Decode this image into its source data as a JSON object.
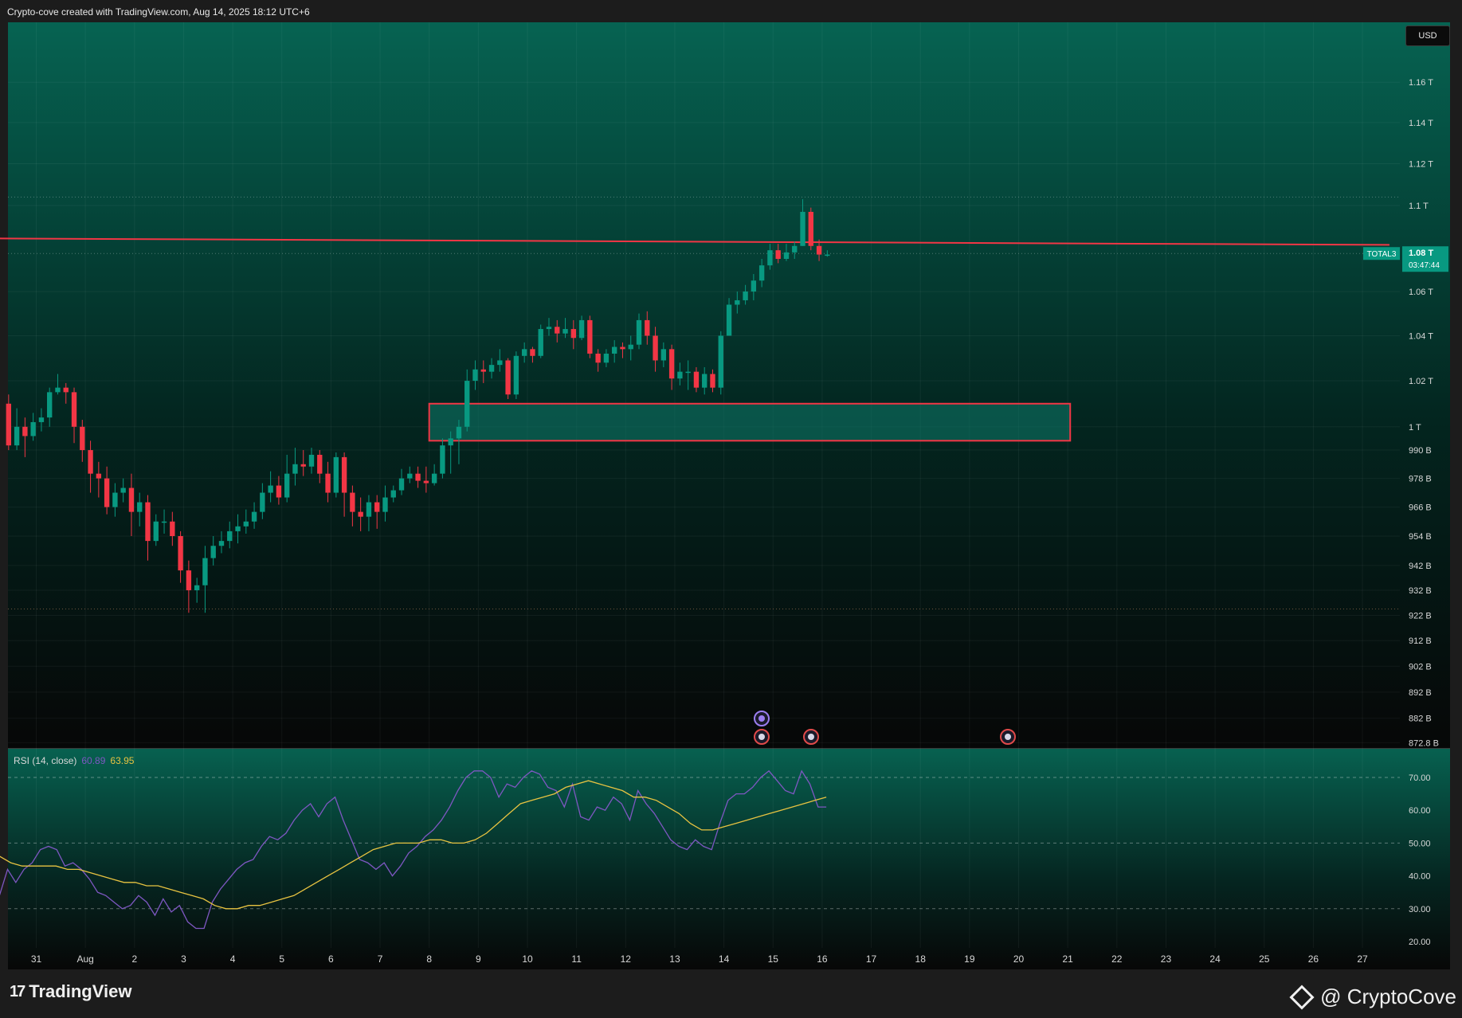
{
  "header": {
    "caption": "Crypto-cove created with TradingView.com, Aug 14, 2025 18:12 UTC+6"
  },
  "currency_button": "USD",
  "symbol_label": "TOTAL3",
  "price_label": {
    "value": "1.08 T",
    "countdown": "03:47:44"
  },
  "rsi_legend": {
    "title": "RSI (14, close)",
    "rsi": "60.89",
    "ma": "63.95"
  },
  "footer": {
    "brand": "TradingView",
    "brand_mark": "17",
    "watermark": "@ CryptoCove"
  },
  "colors": {
    "up": "#089981",
    "down": "#f23645",
    "resistance": "#f23645",
    "zone_fill": "#0e7c6b",
    "zone_border": "#f23645",
    "rsi_line": "#7e57c2",
    "rsi_ma": "#e8c341",
    "bg_top": "#066352",
    "bg_bottom": "#070707"
  },
  "chart_data": [
    {
      "type": "candlestick",
      "symbol": "TOTAL3",
      "interval": "4h",
      "y_scale": "log",
      "ylim": [
        872.8,
        1180
      ],
      "y_unit": "B",
      "y_ticks": [
        {
          "v": 1160,
          "label": "1.16 T"
        },
        {
          "v": 1140,
          "label": "1.14 T"
        },
        {
          "v": 1120,
          "label": "1.12 T"
        },
        {
          "v": 1100,
          "label": "1.1 T"
        },
        {
          "v": 1060,
          "label": "1.06 T"
        },
        {
          "v": 1040,
          "label": "1.04 T"
        },
        {
          "v": 1020,
          "label": "1.02 T"
        },
        {
          "v": 1000,
          "label": "1 T"
        },
        {
          "v": 990,
          "label": "990 B"
        },
        {
          "v": 978,
          "label": "978 B"
        },
        {
          "v": 966,
          "label": "966 B"
        },
        {
          "v": 954,
          "label": "954 B"
        },
        {
          "v": 942,
          "label": "942 B"
        },
        {
          "v": 932,
          "label": "932 B"
        },
        {
          "v": 922,
          "label": "922 B"
        },
        {
          "v": 912,
          "label": "912 B"
        },
        {
          "v": 902,
          "label": "902 B"
        },
        {
          "v": 892,
          "label": "892 B"
        },
        {
          "v": 882,
          "label": "882 B"
        },
        {
          "v": 872.8,
          "label": "872.8 B"
        }
      ],
      "x_ticks": [
        {
          "t": 30.75,
          "label": "31"
        },
        {
          "t": 31.75,
          "label": "Aug"
        },
        {
          "t": 32.75,
          "label": "2"
        },
        {
          "t": 33.75,
          "label": "3"
        },
        {
          "t": 34.75,
          "label": "4"
        },
        {
          "t": 35.75,
          "label": "5"
        },
        {
          "t": 36.75,
          "label": "6"
        },
        {
          "t": 37.75,
          "label": "7"
        },
        {
          "t": 38.75,
          "label": "8"
        },
        {
          "t": 39.75,
          "label": "9"
        },
        {
          "t": 40.75,
          "label": "10"
        },
        {
          "t": 41.75,
          "label": "11"
        },
        {
          "t": 42.75,
          "label": "12"
        },
        {
          "t": 43.75,
          "label": "13"
        },
        {
          "t": 44.75,
          "label": "14"
        },
        {
          "t": 45.75,
          "label": "15"
        },
        {
          "t": 46.75,
          "label": "16"
        },
        {
          "t": 47.75,
          "label": "17"
        },
        {
          "t": 48.75,
          "label": "18"
        },
        {
          "t": 49.75,
          "label": "19"
        },
        {
          "t": 50.75,
          "label": "20"
        },
        {
          "t": 51.75,
          "label": "21"
        },
        {
          "t": 52.75,
          "label": "22"
        },
        {
          "t": 53.75,
          "label": "23"
        },
        {
          "t": 54.75,
          "label": "24"
        },
        {
          "t": 55.75,
          "label": "25"
        },
        {
          "t": 56.75,
          "label": "26"
        },
        {
          "t": 57.75,
          "label": "27"
        }
      ],
      "candles": [
        [
          1010,
          992,
          1014,
          990
        ],
        [
          992,
          1000,
          1008,
          990
        ],
        [
          1000,
          996,
          1004,
          987
        ],
        [
          996,
          1002,
          1006,
          994
        ],
        [
          1002,
          1004,
          1008,
          998
        ],
        [
          1004,
          1015,
          1017,
          1000
        ],
        [
          1015,
          1017,
          1023,
          1014
        ],
        [
          1017,
          1015,
          1019,
          1010
        ],
        [
          1015,
          1000,
          1017,
          993
        ],
        [
          1000,
          990,
          1003,
          985
        ],
        [
          990,
          980,
          994,
          972
        ],
        [
          980,
          978,
          985,
          970
        ],
        [
          978,
          966,
          983,
          963
        ],
        [
          966,
          972,
          976,
          962
        ],
        [
          972,
          974,
          978,
          968
        ],
        [
          974,
          964,
          980,
          954
        ],
        [
          964,
          968,
          972,
          958
        ],
        [
          968,
          952,
          971,
          944
        ],
        [
          952,
          960,
          963,
          950
        ],
        [
          960,
          960,
          965,
          955
        ],
        [
          960,
          954,
          964,
          950
        ],
        [
          954,
          940,
          956,
          935
        ],
        [
          940,
          932,
          944,
          923
        ],
        [
          932,
          934,
          937,
          927
        ],
        [
          934,
          945,
          950,
          923
        ],
        [
          945,
          950,
          954,
          942
        ],
        [
          950,
          952,
          956,
          947
        ],
        [
          952,
          956,
          960,
          949
        ],
        [
          956,
          958,
          963,
          951
        ],
        [
          958,
          960,
          965,
          955
        ],
        [
          960,
          964,
          968,
          957
        ],
        [
          964,
          972,
          976,
          961
        ],
        [
          972,
          975,
          981,
          968
        ],
        [
          975,
          970,
          979,
          967
        ],
        [
          970,
          980,
          988,
          968
        ],
        [
          980,
          984,
          991,
          975
        ],
        [
          984,
          983,
          990,
          979
        ],
        [
          983,
          988,
          991,
          980
        ],
        [
          988,
          980,
          990,
          976
        ],
        [
          980,
          972,
          985,
          968
        ],
        [
          972,
          987,
          989,
          970
        ],
        [
          987,
          972,
          989,
          962
        ],
        [
          972,
          964,
          975,
          958
        ],
        [
          964,
          962,
          970,
          956
        ],
        [
          962,
          968,
          971,
          956
        ],
        [
          968,
          964,
          971,
          957
        ],
        [
          964,
          970,
          975,
          960
        ],
        [
          970,
          973,
          975,
          968
        ],
        [
          973,
          978,
          982,
          971
        ],
        [
          978,
          980,
          983,
          976
        ],
        [
          980,
          977,
          983,
          974
        ],
        [
          977,
          976,
          983,
          972
        ],
        [
          976,
          980,
          984,
          975
        ],
        [
          980,
          992,
          995,
          978
        ],
        [
          992,
          995,
          998,
          980
        ],
        [
          995,
          1000,
          1003,
          984
        ],
        [
          1000,
          1020,
          1025,
          998
        ],
        [
          1020,
          1025,
          1029,
          1016
        ],
        [
          1025,
          1024,
          1029,
          1019
        ],
        [
          1024,
          1027,
          1030,
          1021
        ],
        [
          1027,
          1029,
          1034,
          1024
        ],
        [
          1029,
          1014,
          1030,
          1012
        ],
        [
          1014,
          1031,
          1033,
          1012
        ],
        [
          1031,
          1034,
          1037,
          1028
        ],
        [
          1034,
          1031,
          1035,
          1028
        ],
        [
          1031,
          1043,
          1045,
          1030
        ],
        [
          1043,
          1044,
          1048,
          1040
        ],
        [
          1044,
          1041,
          1047,
          1037
        ],
        [
          1041,
          1043,
          1048,
          1039
        ],
        [
          1043,
          1039,
          1047,
          1034
        ],
        [
          1039,
          1047,
          1049,
          1038
        ],
        [
          1047,
          1032,
          1049,
          1030
        ],
        [
          1032,
          1028,
          1034,
          1024
        ],
        [
          1028,
          1032,
          1034,
          1026
        ],
        [
          1032,
          1035,
          1038,
          1028
        ],
        [
          1035,
          1034,
          1037,
          1030
        ],
        [
          1034,
          1036,
          1040,
          1029
        ],
        [
          1036,
          1047,
          1050,
          1034
        ],
        [
          1047,
          1040,
          1051,
          1036
        ],
        [
          1040,
          1029,
          1044,
          1024
        ],
        [
          1029,
          1034,
          1037,
          1026
        ],
        [
          1034,
          1021,
          1036,
          1016
        ],
        [
          1021,
          1024,
          1028,
          1018
        ],
        [
          1024,
          1024,
          1029,
          1016
        ],
        [
          1024,
          1017,
          1026,
          1015
        ],
        [
          1017,
          1023,
          1026,
          1014
        ],
        [
          1023,
          1017,
          1025,
          1015
        ],
        [
          1017,
          1040,
          1042,
          1014
        ],
        [
          1040,
          1054,
          1057,
          1040
        ],
        [
          1054,
          1056,
          1060,
          1050
        ],
        [
          1056,
          1060,
          1063,
          1054
        ],
        [
          1060,
          1065,
          1068,
          1056
        ],
        [
          1065,
          1072,
          1075,
          1062
        ],
        [
          1072,
          1079,
          1082,
          1070
        ],
        [
          1079,
          1075,
          1082,
          1073
        ],
        [
          1075,
          1078,
          1082,
          1074
        ],
        [
          1078,
          1081,
          1083,
          1075
        ],
        [
          1081,
          1097,
          1103,
          1081
        ],
        [
          1097,
          1081,
          1099,
          1079
        ],
        [
          1081,
          1077,
          1084,
          1074
        ],
        [
          1077,
          1077,
          1079,
          1076
        ]
      ],
      "t0": 30.1875,
      "t_step": 0.16667,
      "resistance_line": {
        "y_start": 1084.5,
        "y_end": 1081.5,
        "t_start": 30.0,
        "t_end": 58.3
      },
      "dotted_levels": [
        1104,
        1077.5,
        924.5
      ],
      "demand_zone": {
        "t_start": 38.75,
        "t_end": 51.8,
        "y_top": 1010,
        "y_bottom": 994
      },
      "last_price": 1077.5
    },
    {
      "type": "line",
      "title": "RSI (14, close)",
      "ylim": [
        17,
        76
      ],
      "y_ticks": [
        70,
        60,
        50,
        40,
        30,
        20
      ],
      "levels": [
        70,
        50,
        30
      ],
      "series": [
        {
          "name": "RSI",
          "t0": 30.0,
          "t_step": 0.16667,
          "values": [
            34,
            42,
            38,
            42,
            44,
            48,
            49,
            48,
            43,
            44,
            42,
            39,
            35,
            34,
            32,
            30,
            31,
            34,
            32,
            28,
            33,
            29,
            31,
            26,
            24,
            24,
            32,
            36,
            39,
            42,
            44,
            45,
            49,
            52,
            51,
            53,
            57,
            60,
            62,
            58,
            62,
            64,
            57,
            51,
            45,
            44,
            42,
            44,
            40,
            43,
            47,
            49,
            52,
            54,
            57,
            61,
            66,
            70,
            72,
            72,
            70,
            64,
            68,
            67,
            70,
            72,
            71,
            67,
            66,
            61,
            68,
            58,
            57,
            61,
            60,
            64,
            62,
            57,
            66,
            62,
            59,
            55,
            51,
            49,
            48,
            51,
            49,
            48,
            56,
            63,
            65,
            65,
            67,
            70,
            72,
            69,
            66,
            65,
            72,
            68,
            61,
            61
          ]
        },
        {
          "name": "RSI-based MA",
          "t0": 30.0,
          "t_step": 0.16667,
          "values": [
            46,
            44,
            43,
            43,
            43,
            43,
            42,
            42,
            41,
            40,
            39,
            38,
            38,
            37,
            37,
            36,
            35,
            34,
            33,
            31,
            30,
            30,
            31,
            31,
            32,
            33,
            34,
            36,
            38,
            40,
            42,
            44,
            46,
            48,
            49,
            50,
            50,
            50,
            51,
            51,
            50,
            50,
            51,
            53,
            56,
            59,
            62,
            63,
            64,
            65,
            67,
            68,
            69,
            68,
            67,
            66,
            64,
            64,
            63,
            61,
            59,
            56,
            54,
            54,
            55,
            56,
            57,
            58,
            59,
            60,
            61,
            62,
            63,
            64
          ]
        }
      ],
      "ma_t0": 31.83
    }
  ]
}
